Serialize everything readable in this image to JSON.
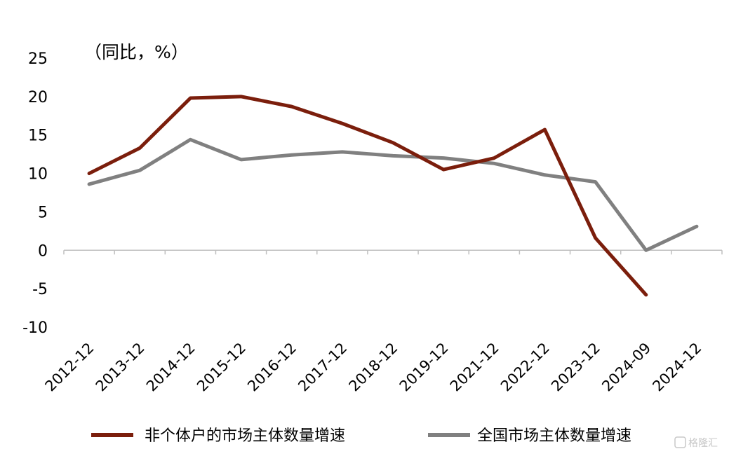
{
  "chart_data": {
    "type": "line",
    "unit_label": "（同比，%）",
    "categories": [
      "2012-12",
      "2013-12",
      "2014-12",
      "2015-12",
      "2016-12",
      "2017-12",
      "2018-12",
      "2019-12",
      "2021-12",
      "2022-12",
      "2023-12",
      "2024-09",
      "2024-12"
    ],
    "ylim": [
      -10,
      25
    ],
    "yticks": [
      "25",
      "20",
      "15",
      "10",
      "5",
      "0",
      "-5",
      "-10"
    ],
    "series": [
      {
        "name": "非个体户的市场主体数量增速",
        "color": "#7b1e0c",
        "values": [
          10.0,
          13.3,
          19.8,
          20.0,
          18.7,
          16.5,
          14.0,
          10.5,
          12.0,
          15.7,
          1.6,
          -5.8,
          null
        ]
      },
      {
        "name": "全国市场主体数量增速",
        "color": "#808080",
        "values": [
          8.6,
          10.4,
          14.4,
          11.8,
          12.4,
          12.8,
          12.3,
          12.0,
          11.3,
          9.8,
          8.9,
          0.0,
          3.1
        ]
      }
    ]
  },
  "watermark": "格隆汇"
}
